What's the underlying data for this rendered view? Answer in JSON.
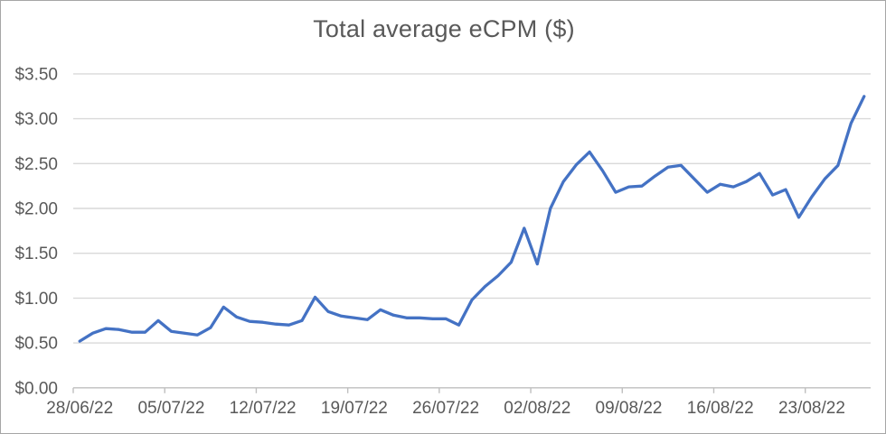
{
  "chart": {
    "title": "Total average eCPM ($)",
    "colors": {
      "line": "#4472C4",
      "gridline": "#D9D9D9",
      "axis": "#BFBFBF",
      "text": "#595959",
      "background": "#FFFFFF",
      "border": "#A6A6A6"
    }
  },
  "chart_data": {
    "type": "line",
    "title": "Total average eCPM ($)",
    "series_name": "Total average eCPM",
    "categories": [
      "28/06/22",
      "29/06/22",
      "30/06/22",
      "01/07/22",
      "02/07/22",
      "03/07/22",
      "04/07/22",
      "05/07/22",
      "06/07/22",
      "07/07/22",
      "08/07/22",
      "09/07/22",
      "10/07/22",
      "11/07/22",
      "12/07/22",
      "13/07/22",
      "14/07/22",
      "15/07/22",
      "16/07/22",
      "17/07/22",
      "18/07/22",
      "19/07/22",
      "20/07/22",
      "21/07/22",
      "22/07/22",
      "23/07/22",
      "24/07/22",
      "25/07/22",
      "26/07/22",
      "27/07/22",
      "28/07/22",
      "29/07/22",
      "30/07/22",
      "31/07/22",
      "01/08/22",
      "02/08/22",
      "03/08/22",
      "04/08/22",
      "05/08/22",
      "06/08/22",
      "07/08/22",
      "08/08/22",
      "09/08/22",
      "10/08/22",
      "11/08/22",
      "12/08/22",
      "13/08/22",
      "14/08/22",
      "15/08/22",
      "16/08/22",
      "17/08/22",
      "18/08/22",
      "19/08/22",
      "20/08/22",
      "21/08/22",
      "22/08/22",
      "23/08/22",
      "24/08/22",
      "25/08/22",
      "26/08/22",
      "27/08/22"
    ],
    "values": [
      0.52,
      0.61,
      0.66,
      0.65,
      0.62,
      0.62,
      0.75,
      0.63,
      0.61,
      0.59,
      0.67,
      0.9,
      0.79,
      0.74,
      0.73,
      0.71,
      0.7,
      0.75,
      1.01,
      0.85,
      0.8,
      0.78,
      0.76,
      0.87,
      0.81,
      0.78,
      0.78,
      0.77,
      0.77,
      0.7,
      0.98,
      1.13,
      1.25,
      1.4,
      1.78,
      1.38,
      2.0,
      2.3,
      2.49,
      2.63,
      2.42,
      2.18,
      2.24,
      2.25,
      2.36,
      2.46,
      2.48,
      2.33,
      2.18,
      2.27,
      2.24,
      2.3,
      2.39,
      2.15,
      2.21,
      1.9,
      2.13,
      2.33,
      2.48,
      2.95,
      3.25
    ],
    "x_tick_labels": [
      "28/06/22",
      "05/07/22",
      "12/07/22",
      "19/07/22",
      "26/07/22",
      "02/08/22",
      "09/08/22",
      "16/08/22",
      "23/08/22"
    ],
    "x_tick_every": 7,
    "y_tick_labels": [
      "$0.00",
      "$0.50",
      "$1.00",
      "$1.50",
      "$2.00",
      "$2.50",
      "$3.00",
      "$3.50"
    ],
    "ylim": [
      0,
      3.5
    ],
    "y_tick_step": 0.5,
    "grid": "horizontal",
    "legend": "none"
  }
}
